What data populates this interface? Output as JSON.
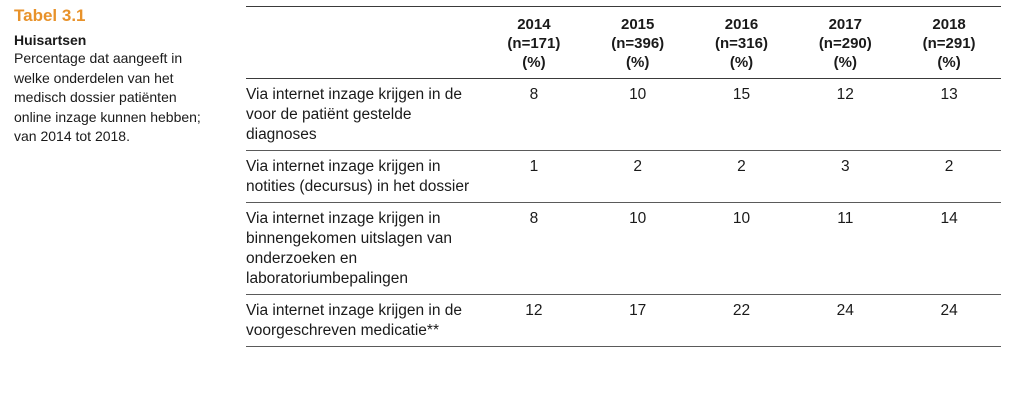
{
  "sidebar": {
    "table_label": "Tabel 3.1",
    "heading": "Huisartsen",
    "caption": "Percentage dat aangeeft in welke onderdelen van het medisch dossier patiënten online inzage kunnen hebben; van 2014 tot 2018."
  },
  "table": {
    "columns": [
      {
        "year": "2014",
        "n": "(n=171)",
        "unit": "(%)"
      },
      {
        "year": "2015",
        "n": "(n=396)",
        "unit": "(%)"
      },
      {
        "year": "2016",
        "n": "(n=316)",
        "unit": "(%)"
      },
      {
        "year": "2017",
        "n": "(n=290)",
        "unit": "(%)"
      },
      {
        "year": "2018",
        "n": "(n=291)",
        "unit": "(%)"
      }
    ],
    "rows": [
      {
        "label": "Via internet inzage krijgen in de voor de patiënt gestelde diagnoses",
        "values": [
          "8",
          "10",
          "15",
          "12",
          "13"
        ]
      },
      {
        "label": "Via internet inzage krijgen in notities (decursus) in het dossier",
        "values": [
          "1",
          "2",
          "2",
          "3",
          "2"
        ]
      },
      {
        "label": "Via internet inzage krijgen in binnengekomen uitslagen van onderzoeken en laboratoriumbepalingen",
        "values": [
          "8",
          "10",
          "10",
          "11",
          "14"
        ]
      },
      {
        "label": "Via internet inzage krijgen in de voorgeschreven medicatie**",
        "values": [
          "12",
          "17",
          "22",
          "24",
          "24"
        ]
      }
    ]
  }
}
